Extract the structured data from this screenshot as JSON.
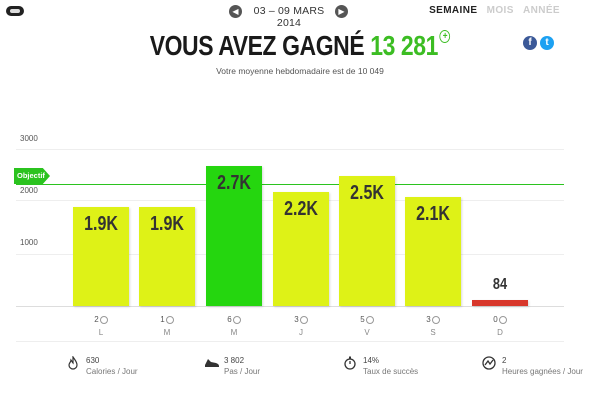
{
  "header": {
    "date_range": "03 – 09 MARS 2014",
    "tabs": [
      {
        "label": "SEMAINE",
        "active": true
      },
      {
        "label": "MOIS",
        "active": false
      },
      {
        "label": "ANNÉE",
        "active": false
      }
    ],
    "prev_icon": "chevron-left-icon",
    "next_icon": "chevron-right-icon"
  },
  "headline": {
    "prefix": "VOUS AVEZ GAGNÉ",
    "value": "13 281",
    "subtitle": "Votre moyenne hebdomadaire est de 10 049"
  },
  "share": {
    "facebook": "f",
    "twitter": "t"
  },
  "colors": {
    "accent": "#3cbd23",
    "bar_default": "#def217",
    "bar_best": "#25d60f",
    "bar_low": "#d8372b"
  },
  "chart_data": {
    "type": "bar",
    "categories": [
      "L",
      "M",
      "M",
      "J",
      "V",
      "S",
      "D"
    ],
    "values": [
      1900,
      1900,
      2700,
      2200,
      2500,
      2100,
      84
    ],
    "labels": [
      "1.9K",
      "1.9K",
      "2.7K",
      "2.2K",
      "2.5K",
      "2.1K",
      "84"
    ],
    "counts": [
      "2",
      "1",
      "6",
      "3",
      "5",
      "3",
      "0"
    ],
    "objective_label": "Objectif",
    "objective_value": 2350,
    "yticks": [
      "3000",
      "2000",
      "1000"
    ],
    "ylim": [
      0,
      3000
    ]
  },
  "stats": [
    {
      "icon": "flame-icon",
      "value": "630",
      "label": "Calories / Jour"
    },
    {
      "icon": "shoe-icon",
      "value": "3 802",
      "label": "Pas / Jour"
    },
    {
      "icon": "stopwatch-icon",
      "value": "14%",
      "label": "Taux de succès"
    },
    {
      "icon": "activity-icon",
      "value": "2",
      "label": "Heures gagnées / Jour"
    }
  ]
}
